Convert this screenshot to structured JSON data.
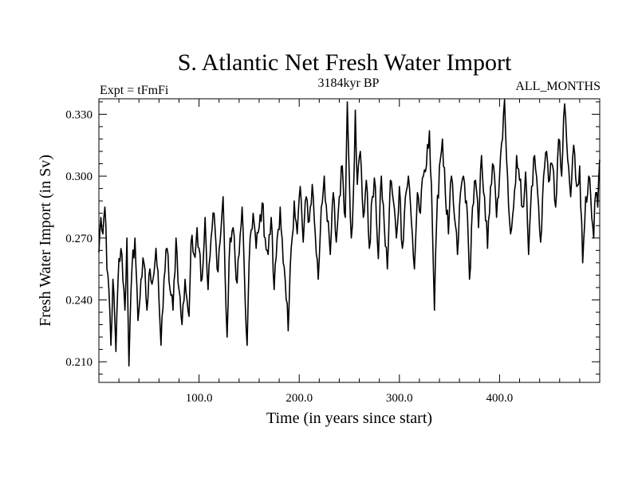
{
  "chart_data": {
    "type": "line",
    "title": "S. Atlantic Net Fresh Water Import",
    "subtitle_left": "Expt = tFmFi",
    "subtitle_center": "3184kyr BP",
    "subtitle_right": "ALL_MONTHS",
    "xlabel": "Time (in years since start)",
    "ylabel": "Fresh Water Import (in Sv)",
    "xlim": [
      0,
      500
    ],
    "ylim": [
      0.2,
      0.3375
    ],
    "xticks": [
      100,
      200,
      300,
      400
    ],
    "xtick_labels": [
      "100.0",
      "200.0",
      "300.0",
      "400.0"
    ],
    "yticks": [
      0.21,
      0.24,
      0.27,
      0.3,
      0.33
    ],
    "ytick_labels": [
      "0.210",
      "0.240",
      "0.270",
      "0.300",
      "0.330"
    ],
    "grid": false,
    "line_color": "#000000",
    "series": [
      {
        "name": "Fresh Water Import",
        "keypoints": [
          [
            0,
            0.263
          ],
          [
            2,
            0.28
          ],
          [
            4,
            0.272
          ],
          [
            6,
            0.285
          ],
          [
            8,
            0.255
          ],
          [
            10,
            0.245
          ],
          [
            12,
            0.218
          ],
          [
            14,
            0.25
          ],
          [
            17,
            0.215
          ],
          [
            20,
            0.26
          ],
          [
            23,
            0.262
          ],
          [
            26,
            0.235
          ],
          [
            28,
            0.27
          ],
          [
            30,
            0.208
          ],
          [
            33,
            0.255
          ],
          [
            36,
            0.27
          ],
          [
            39,
            0.23
          ],
          [
            42,
            0.25
          ],
          [
            45,
            0.258
          ],
          [
            48,
            0.235
          ],
          [
            51,
            0.255
          ],
          [
            54,
            0.25
          ],
          [
            57,
            0.265
          ],
          [
            60,
            0.24
          ],
          [
            62,
            0.218
          ],
          [
            65,
            0.25
          ],
          [
            68,
            0.265
          ],
          [
            71,
            0.245
          ],
          [
            74,
            0.235
          ],
          [
            77,
            0.27
          ],
          [
            80,
            0.245
          ],
          [
            83,
            0.228
          ],
          [
            86,
            0.25
          ],
          [
            88,
            0.24
          ],
          [
            90,
            0.232
          ],
          [
            92,
            0.268
          ],
          [
            95,
            0.262
          ],
          [
            98,
            0.275
          ],
          [
            100,
            0.265
          ],
          [
            103,
            0.25
          ],
          [
            106,
            0.28
          ],
          [
            109,
            0.245
          ],
          [
            112,
            0.27
          ],
          [
            115,
            0.282
          ],
          [
            118,
            0.255
          ],
          [
            121,
            0.268
          ],
          [
            124,
            0.29
          ],
          [
            126,
            0.252
          ],
          [
            128,
            0.222
          ],
          [
            131,
            0.27
          ],
          [
            134,
            0.275
          ],
          [
            137,
            0.25
          ],
          [
            140,
            0.262
          ],
          [
            143,
            0.285
          ],
          [
            146,
            0.24
          ],
          [
            148,
            0.218
          ],
          [
            151,
            0.27
          ],
          [
            154,
            0.282
          ],
          [
            157,
            0.265
          ],
          [
            160,
            0.275
          ],
          [
            163,
            0.287
          ],
          [
            166,
            0.27
          ],
          [
            169,
            0.262
          ],
          [
            172,
            0.28
          ],
          [
            175,
            0.245
          ],
          [
            178,
            0.27
          ],
          [
            181,
            0.285
          ],
          [
            184,
            0.258
          ],
          [
            187,
            0.24
          ],
          [
            189,
            0.225
          ],
          [
            192,
            0.265
          ],
          [
            195,
            0.288
          ],
          [
            198,
            0.272
          ],
          [
            201,
            0.295
          ],
          [
            204,
            0.268
          ],
          [
            207,
            0.29
          ],
          [
            210,
            0.278
          ],
          [
            213,
            0.296
          ],
          [
            216,
            0.272
          ],
          [
            219,
            0.25
          ],
          [
            222,
            0.285
          ],
          [
            225,
            0.3
          ],
          [
            228,
            0.278
          ],
          [
            231,
            0.262
          ],
          [
            234,
            0.292
          ],
          [
            237,
            0.268
          ],
          [
            240,
            0.29
          ],
          [
            243,
            0.305
          ],
          [
            246,
            0.28
          ],
          [
            248,
            0.336
          ],
          [
            250,
            0.3
          ],
          [
            252,
            0.27
          ],
          [
            254,
            0.29
          ],
          [
            256,
            0.332
          ],
          [
            258,
            0.296
          ],
          [
            261,
            0.312
          ],
          [
            264,
            0.28
          ],
          [
            267,
            0.298
          ],
          [
            270,
            0.265
          ],
          [
            273,
            0.29
          ],
          [
            276,
            0.295
          ],
          [
            279,
            0.26
          ],
          [
            282,
            0.3
          ],
          [
            285,
            0.275
          ],
          [
            288,
            0.255
          ],
          [
            291,
            0.298
          ],
          [
            294,
            0.288
          ],
          [
            297,
            0.27
          ],
          [
            300,
            0.295
          ],
          [
            303,
            0.265
          ],
          [
            306,
            0.29
          ],
          [
            309,
            0.3
          ],
          [
            312,
            0.278
          ],
          [
            315,
            0.255
          ],
          [
            318,
            0.292
          ],
          [
            321,
            0.282
          ],
          [
            324,
            0.3
          ],
          [
            327,
            0.305
          ],
          [
            330,
            0.322
          ],
          [
            332,
            0.296
          ],
          [
            335,
            0.235
          ],
          [
            337,
            0.275
          ],
          [
            340,
            0.305
          ],
          [
            343,
            0.318
          ],
          [
            346,
            0.29
          ],
          [
            349,
            0.272
          ],
          [
            352,
            0.3
          ],
          [
            355,
            0.28
          ],
          [
            358,
            0.262
          ],
          [
            361,
            0.292
          ],
          [
            364,
            0.3
          ],
          [
            367,
            0.288
          ],
          [
            370,
            0.25
          ],
          [
            373,
            0.285
          ],
          [
            376,
            0.298
          ],
          [
            379,
            0.275
          ],
          [
            382,
            0.31
          ],
          [
            385,
            0.29
          ],
          [
            388,
            0.265
          ],
          [
            391,
            0.295
          ],
          [
            394,
            0.305
          ],
          [
            397,
            0.28
          ],
          [
            400,
            0.3
          ],
          [
            403,
            0.318
          ],
          [
            405,
            0.337
          ],
          [
            408,
            0.3
          ],
          [
            411,
            0.272
          ],
          [
            414,
            0.285
          ],
          [
            417,
            0.31
          ],
          [
            420,
            0.298
          ],
          [
            423,
            0.285
          ],
          [
            426,
            0.302
          ],
          [
            429,
            0.262
          ],
          [
            432,
            0.295
          ],
          [
            435,
            0.31
          ],
          [
            438,
            0.292
          ],
          [
            441,
            0.268
          ],
          [
            444,
            0.3
          ],
          [
            447,
            0.312
          ],
          [
            450,
            0.298
          ],
          [
            453,
            0.305
          ],
          [
            456,
            0.285
          ],
          [
            459,
            0.318
          ],
          [
            462,
            0.3
          ],
          [
            465,
            0.335
          ],
          [
            468,
            0.308
          ],
          [
            471,
            0.29
          ],
          [
            474,
            0.315
          ],
          [
            477,
            0.295
          ],
          [
            480,
            0.305
          ],
          [
            483,
            0.258
          ],
          [
            486,
            0.29
          ],
          [
            489,
            0.3
          ],
          [
            492,
            0.28
          ],
          [
            494,
            0.27
          ],
          [
            496,
            0.292
          ],
          [
            498,
            0.285
          ],
          [
            500,
            0.308
          ]
        ]
      }
    ]
  }
}
